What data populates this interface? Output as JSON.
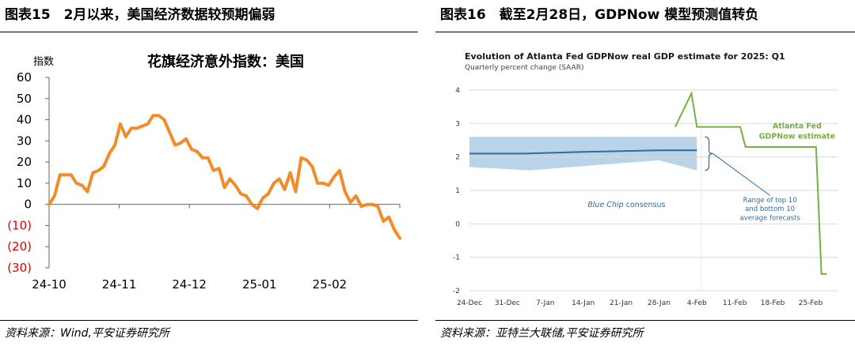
{
  "left": {
    "header": "图表15　2月以来，美国经济数据较预期偏弱",
    "source": "资料来源：Wind,平安证券研究所",
    "chart_data": {
      "type": "line",
      "title": "花旗经济意外指数：美国",
      "ylabel": "指数",
      "ylim": [
        -30,
        60
      ],
      "yticks": [
        60,
        50,
        40,
        30,
        20,
        10,
        0,
        -10,
        -20,
        -30
      ],
      "ytick_labels": [
        "60",
        "50",
        "40",
        "30",
        "20",
        "10",
        "0",
        "(10)",
        "(20)",
        "(30)"
      ],
      "xticks": [
        "24-10",
        "24-11",
        "24-12",
        "25-01",
        "25-02"
      ],
      "negative_label_color": "#e00000",
      "series": [
        {
          "color": "#f28c28",
          "values": [
            0,
            4,
            14,
            14,
            14,
            10,
            9,
            6,
            15,
            16,
            18,
            24,
            28,
            38,
            32,
            36,
            36,
            37,
            38,
            42,
            42,
            40,
            34,
            28,
            29,
            31,
            26,
            25,
            22,
            22,
            16,
            17,
            8,
            12,
            9,
            5,
            4,
            0,
            -2,
            3,
            5,
            10,
            12,
            7,
            15,
            6,
            22,
            21,
            18,
            10,
            10,
            9,
            13,
            16,
            6,
            1,
            4,
            -1,
            0,
            0,
            -1,
            -8,
            -6,
            -12,
            -16
          ]
        }
      ]
    }
  },
  "right": {
    "header": "图表16　截至2月28日，GDPNow 模型预测值转负",
    "source": "资料来源：亚特兰大联储,平安证券研究所",
    "chart_data": {
      "type": "line",
      "title": "Evolution of Atlanta Fed GDPNow real GDP estimate for 2025: Q1",
      "subtitle": "Quarterly percent change (SAAR)",
      "ylim": [
        -2,
        4
      ],
      "yticks": [
        "4",
        "3",
        "2",
        "1",
        "0",
        "-1",
        "-2"
      ],
      "xticks": [
        "24-Dec",
        "31-Dec",
        "7-Jan",
        "14-Jan",
        "21-Jan",
        "28-Jan",
        "4-Feb",
        "11-Feb",
        "18-Feb",
        "25-Feb"
      ],
      "annotations": {
        "gdpnow_label_1": "Atlanta Fed",
        "gdpnow_label_2": "GDPNow estimate",
        "consensus_label_italic": "Blue Chip",
        "consensus_label_rest": " consensus",
        "range_label_1": "Range of top 10",
        "range_label_2": "and bottom 10",
        "range_label_3": "average forecasts"
      },
      "series": [
        {
          "name": "Atlanta Fed GDPNow estimate",
          "color": "#76b041",
          "x_day_index": [
            38,
            41,
            42,
            50,
            51,
            64,
            65,
            66
          ],
          "values": [
            2.9,
            3.9,
            2.9,
            2.9,
            2.3,
            2.3,
            -1.5,
            -1.5
          ]
        },
        {
          "name": "Blue Chip consensus",
          "color": "#2e6da4",
          "x_day_index": [
            0,
            10,
            21,
            35,
            42
          ],
          "values": [
            2.1,
            2.1,
            2.15,
            2.2,
            2.2
          ]
        }
      ],
      "consensus_band": {
        "color": "#b9d3e8",
        "x_day_index": [
          0,
          11,
          35,
          42
        ],
        "upper": [
          2.6,
          2.6,
          2.6,
          2.6
        ],
        "lower": [
          1.7,
          1.6,
          1.9,
          1.6
        ]
      }
    }
  }
}
